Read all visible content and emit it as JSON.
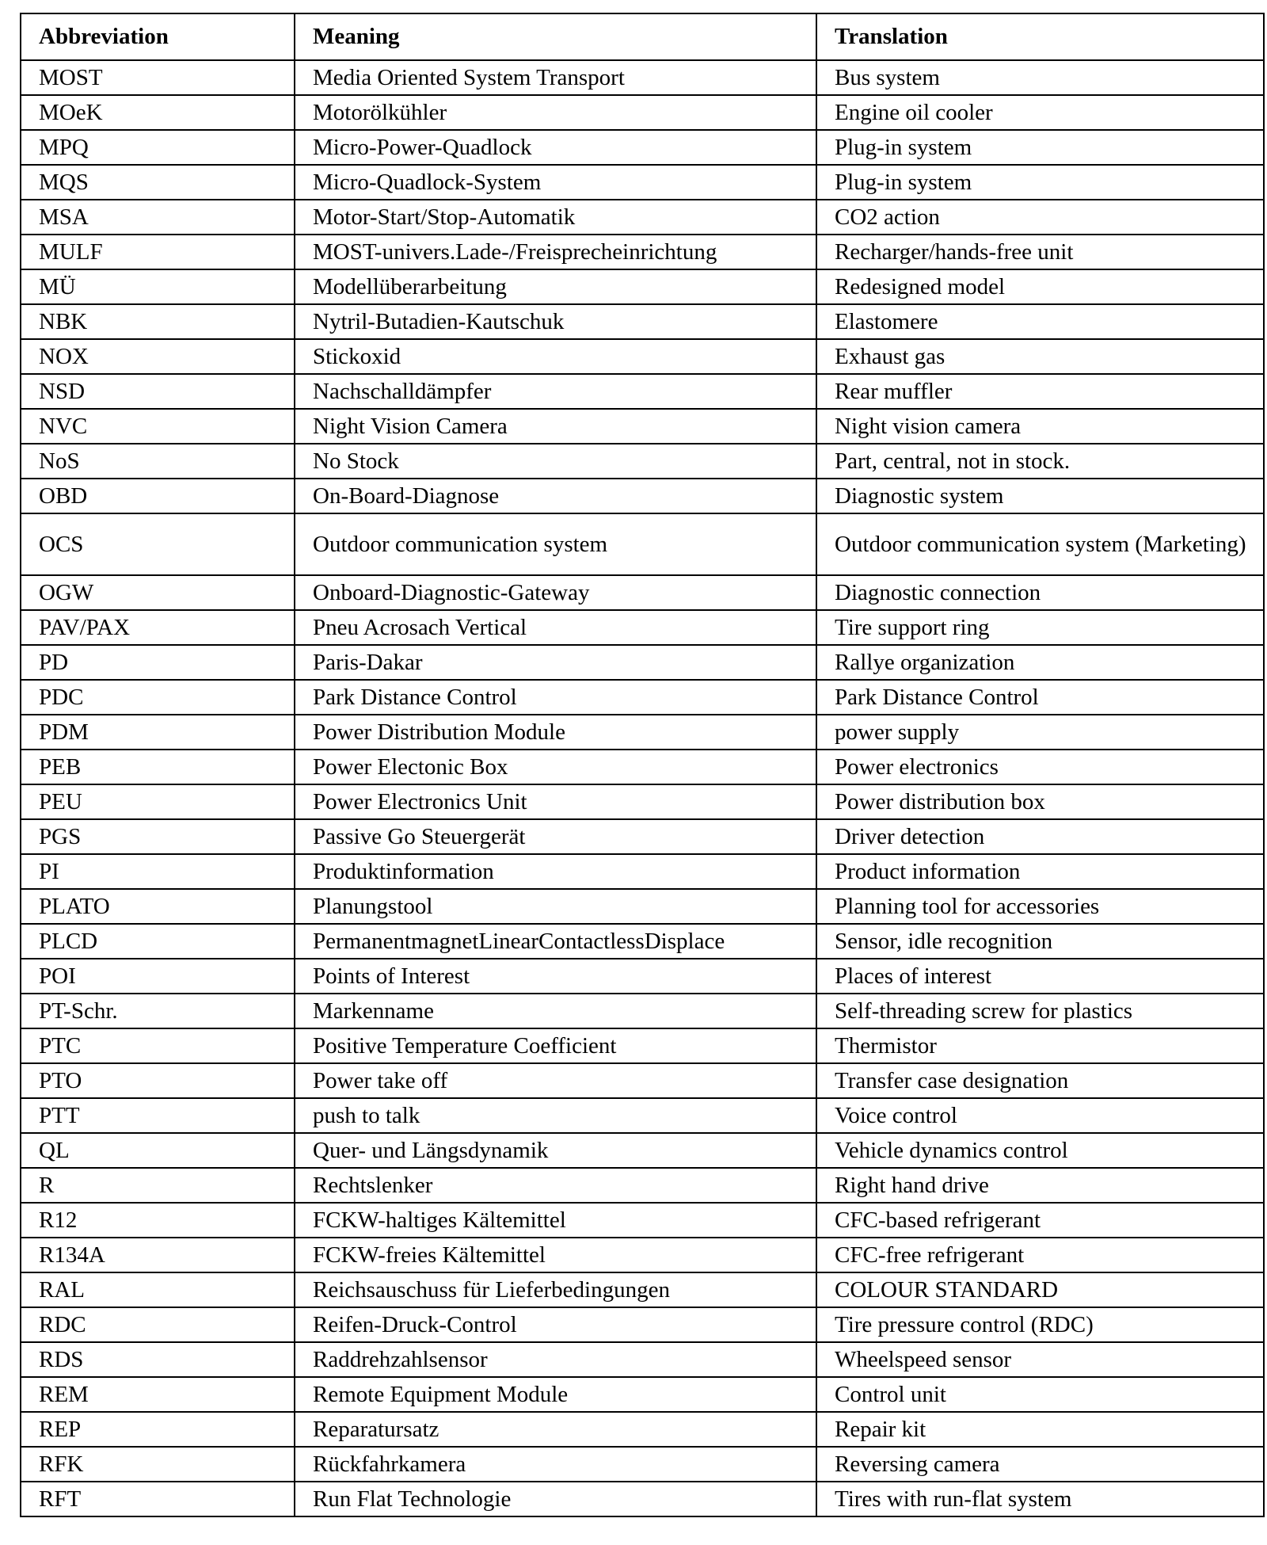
{
  "table": {
    "headers": [
      "Abbreviation",
      "Meaning",
      "Translation"
    ],
    "rows": [
      [
        "MOST",
        "Media Oriented System Transport",
        "Bus system"
      ],
      [
        "MOeK",
        "Motorölkühler",
        "Engine oil cooler"
      ],
      [
        "MPQ",
        "Micro-Power-Quadlock",
        "Plug-in system"
      ],
      [
        "MQS",
        "Micro-Quadlock-System",
        "Plug-in system"
      ],
      [
        "MSA",
        "Motor-Start/Stop-Automatik",
        "CO2 action"
      ],
      [
        "MULF",
        "MOST-univers.Lade-/Freisprecheinrichtung",
        "Recharger/hands-free unit"
      ],
      [
        "MÜ",
        "Modellüberarbeitung",
        "Redesigned model"
      ],
      [
        "NBK",
        "Nytril-Butadien-Kautschuk",
        "Elastomere"
      ],
      [
        "NOX",
        "Stickoxid",
        "Exhaust gas"
      ],
      [
        "NSD",
        "Nachschalldämpfer",
        "Rear muffler"
      ],
      [
        "NVC",
        "Night Vision Camera",
        "Night vision camera"
      ],
      [
        "NoS",
        "No Stock",
        "Part, central, not in stock."
      ],
      [
        "OBD",
        "On-Board-Diagnose",
        "Diagnostic system"
      ],
      [
        "OCS",
        "Outdoor communication system",
        "Outdoor communication system (Marketing)"
      ],
      [
        "OGW",
        "Onboard-Diagnostic-Gateway",
        "Diagnostic connection"
      ],
      [
        "PAV/PAX",
        "Pneu Acrosach Vertical",
        "Tire support ring"
      ],
      [
        "PD",
        "Paris-Dakar",
        "Rallye organization"
      ],
      [
        "PDC",
        "Park Distance Control",
        "Park Distance Control"
      ],
      [
        "PDM",
        "Power Distribution Module",
        "power supply"
      ],
      [
        "PEB",
        "Power Electonic Box",
        "Power electronics"
      ],
      [
        "PEU",
        "Power Electronics Unit",
        "Power distribution box"
      ],
      [
        "PGS",
        "Passive Go Steuergerät",
        "Driver detection"
      ],
      [
        "PI",
        "Produktinformation",
        "Product information"
      ],
      [
        "PLATO",
        "Planungstool",
        "Planning tool for accessories"
      ],
      [
        "PLCD",
        "PermanentmagnetLinearContactlessDisplace",
        "Sensor, idle recognition"
      ],
      [
        "POI",
        "Points of Interest",
        "Places of interest"
      ],
      [
        "PT-Schr.",
        "Markenname",
        "Self-threading screw for plastics"
      ],
      [
        "PTC",
        "Positive Temperature Coefficient",
        "Thermistor"
      ],
      [
        "PTO",
        "Power take off",
        "Transfer case designation"
      ],
      [
        "PTT",
        "push to talk",
        "Voice control"
      ],
      [
        "QL",
        "Quer- und Längsdynamik",
        "Vehicle dynamics control"
      ],
      [
        "R",
        "Rechtslenker",
        "Right hand drive"
      ],
      [
        "R12",
        "FCKW-haltiges Kältemittel",
        "CFC-based refrigerant"
      ],
      [
        "R134A",
        "FCKW-freies Kältemittel",
        "CFC-free refrigerant"
      ],
      [
        "RAL",
        "Reichsauschuss für Lieferbedingungen",
        "COLOUR STANDARD"
      ],
      [
        "RDC",
        "Reifen-Druck-Control",
        "Tire pressure control (RDC)"
      ],
      [
        "RDS",
        "Raddrehzahlsensor",
        "Wheelspeed sensor"
      ],
      [
        "REM",
        "Remote Equipment Module",
        "Control unit"
      ],
      [
        "REP",
        "Reparatursatz",
        "Repair kit"
      ],
      [
        "RFK",
        "Rückfahrkamera",
        "Reversing camera"
      ],
      [
        "RFT",
        "Run Flat Technologie",
        "Tires with run-flat system"
      ]
    ]
  }
}
